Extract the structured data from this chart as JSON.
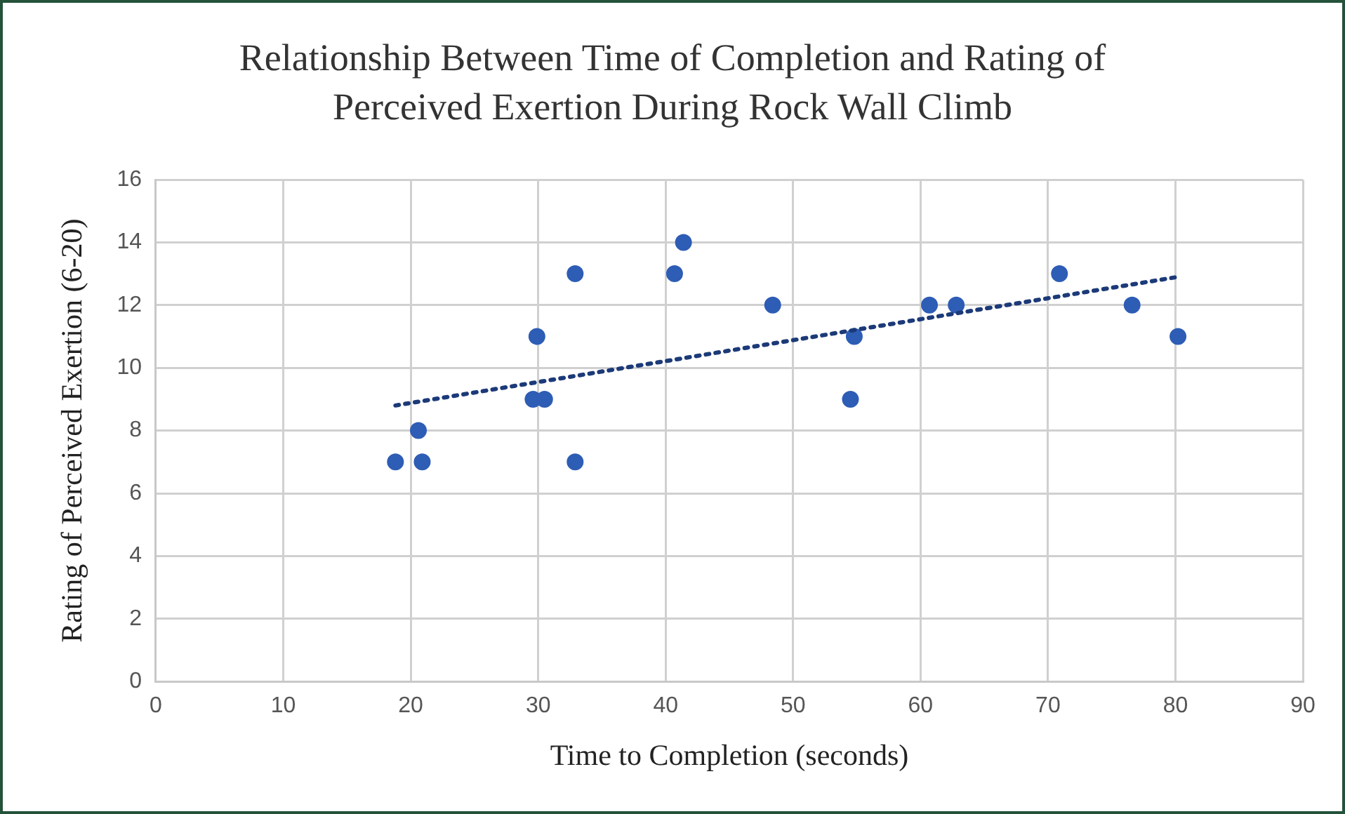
{
  "chart_data": {
    "type": "scatter",
    "title": "Relationship Between Time of Completion and Rating of Perceived Exertion During Rock Wall Climb",
    "xlabel": "Time to Completion (seconds)",
    "ylabel": "Rating of Perceived Exertion (6-20)",
    "xlim": [
      0,
      90
    ],
    "xticks": [
      0,
      10,
      20,
      30,
      40,
      50,
      60,
      70,
      80,
      90
    ],
    "ylim": [
      0,
      16
    ],
    "yticks": [
      0,
      2,
      4,
      6,
      8,
      10,
      12,
      14,
      16
    ],
    "grid": true,
    "legend": false,
    "marker": "circle",
    "series": [
      {
        "color": "#2e5db5",
        "x": [
          18.8,
          20.6,
          20.9,
          29.6,
          30.5,
          29.9,
          32.9,
          32.9,
          40.7,
          41.4,
          48.4,
          54.8,
          54.5,
          60.7,
          62.8,
          70.9,
          76.6,
          80.2
        ],
        "values": [
          7,
          8,
          7,
          9,
          9,
          11,
          13,
          7,
          13,
          14,
          12,
          11,
          9,
          12,
          12,
          13,
          12,
          11
        ]
      },
      {
        "type": "line",
        "color": "#1c3a78",
        "marker": "none",
        "line_style": "dotted",
        "x": [
          18.8,
          80.2
        ],
        "values": [
          8.8,
          12.9
        ]
      }
    ]
  }
}
